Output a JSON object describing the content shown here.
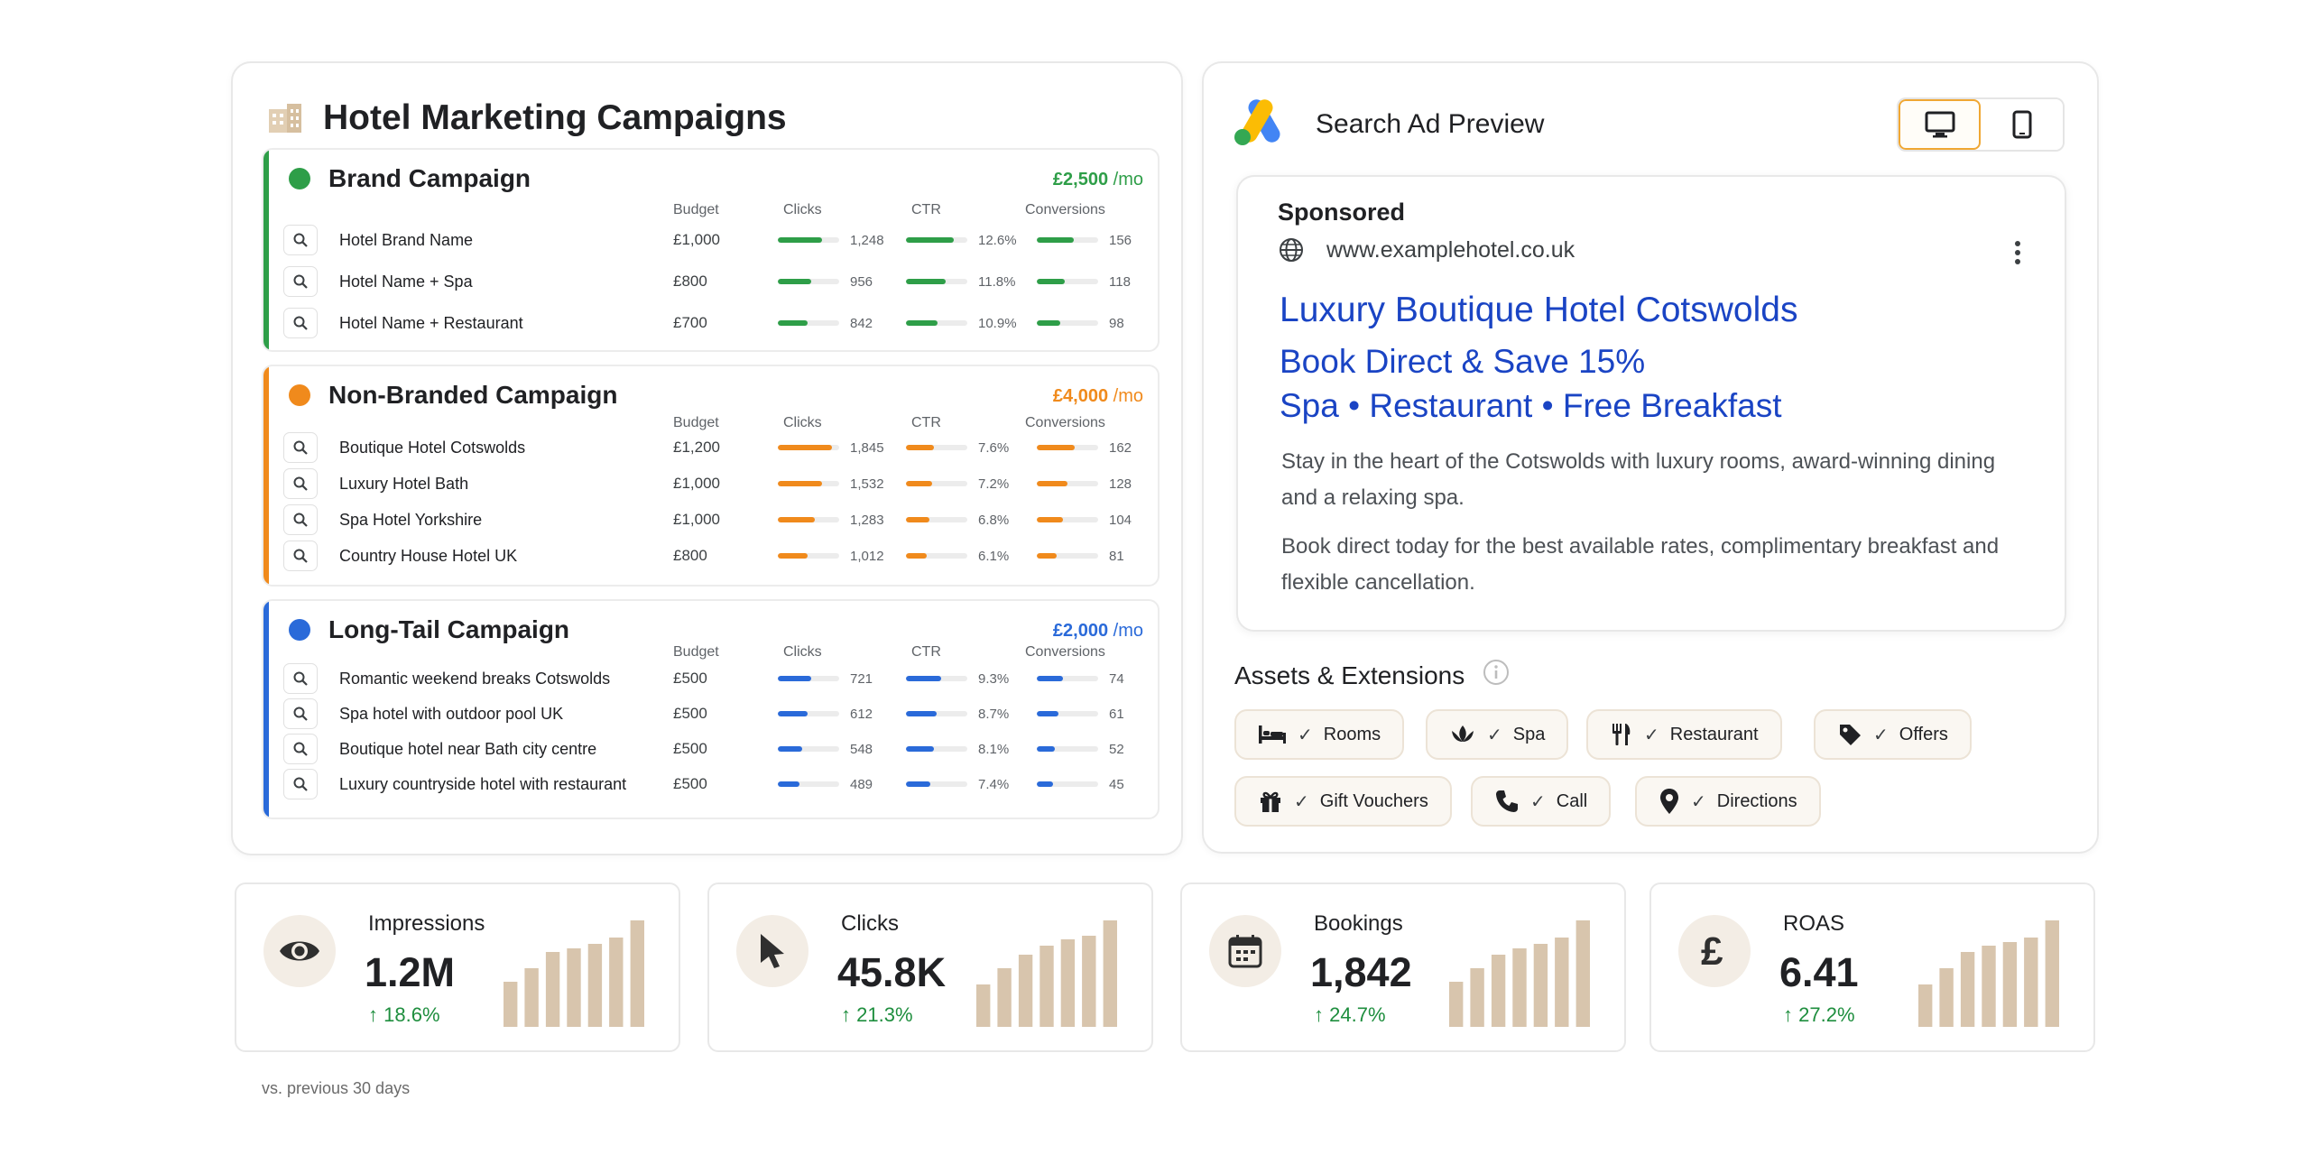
{
  "left": {
    "title": "Hotel Marketing Campaigns",
    "columns": {
      "budget": "Budget",
      "clicks": "Clicks",
      "ctr": "CTR",
      "conversions": "Conversions"
    },
    "campaigns": [
      {
        "name": "Brand Campaign",
        "budget": "£2,500",
        "budget_unit": "/mo",
        "color": "#2e9e48",
        "keywords": [
          {
            "text": "Hotel Brand Name",
            "budget": "£1,000",
            "clicks": "1,248",
            "ctr": "12.6%",
            "conversions": "156",
            "clicks_frac": 0.72,
            "ctr_frac": 0.78,
            "conv_frac": 0.6
          },
          {
            "text": "Hotel Name + Spa",
            "budget": "£800",
            "clicks": "956",
            "ctr": "11.8%",
            "conversions": "118",
            "clicks_frac": 0.55,
            "ctr_frac": 0.65,
            "conv_frac": 0.45
          },
          {
            "text": "Hotel Name + Restaurant",
            "budget": "£700",
            "clicks": "842",
            "ctr": "10.9%",
            "conversions": "98",
            "clicks_frac": 0.48,
            "ctr_frac": 0.52,
            "conv_frac": 0.38
          }
        ]
      },
      {
        "name": "Non-Branded Campaign",
        "budget": "£4,000",
        "budget_unit": "/mo",
        "color": "#f08a1c",
        "keywords": [
          {
            "text": "Boutique Hotel Cotswolds",
            "budget": "£1,200",
            "clicks": "1,845",
            "ctr": "7.6%",
            "conversions": "162",
            "clicks_frac": 0.88,
            "ctr_frac": 0.45,
            "conv_frac": 0.62
          },
          {
            "text": "Luxury Hotel Bath",
            "budget": "£1,000",
            "clicks": "1,532",
            "ctr": "7.2%",
            "conversions": "128",
            "clicks_frac": 0.72,
            "ctr_frac": 0.42,
            "conv_frac": 0.5
          },
          {
            "text": "Spa Hotel Yorkshire",
            "budget": "£1,000",
            "clicks": "1,283",
            "ctr": "6.8%",
            "conversions": "104",
            "clicks_frac": 0.6,
            "ctr_frac": 0.38,
            "conv_frac": 0.42
          },
          {
            "text": "Country House Hotel UK",
            "budget": "£800",
            "clicks": "1,012",
            "ctr": "6.1%",
            "conversions": "81",
            "clicks_frac": 0.48,
            "ctr_frac": 0.34,
            "conv_frac": 0.32
          }
        ]
      },
      {
        "name": "Long-Tail Campaign",
        "budget": "£2,000",
        "budget_unit": "/mo",
        "color": "#2a6ad9",
        "keywords": [
          {
            "text": "Romantic weekend breaks Cotswolds",
            "budget": "£500",
            "clicks": "721",
            "ctr": "9.3%",
            "conversions": "74",
            "clicks_frac": 0.55,
            "ctr_frac": 0.58,
            "conv_frac": 0.42
          },
          {
            "text": "Spa hotel with outdoor pool UK",
            "budget": "£500",
            "clicks": "612",
            "ctr": "8.7%",
            "conversions": "61",
            "clicks_frac": 0.48,
            "ctr_frac": 0.5,
            "conv_frac": 0.36
          },
          {
            "text": "Boutique hotel near Bath city centre",
            "budget": "£500",
            "clicks": "548",
            "ctr": "8.1%",
            "conversions": "52",
            "clicks_frac": 0.4,
            "ctr_frac": 0.45,
            "conv_frac": 0.3
          },
          {
            "text": "Luxury countryside hotel with restaurant",
            "budget": "£500",
            "clicks": "489",
            "ctr": "7.4%",
            "conversions": "45",
            "clicks_frac": 0.35,
            "ctr_frac": 0.4,
            "conv_frac": 0.26
          }
        ]
      }
    ]
  },
  "preview": {
    "title": "Search Ad Preview",
    "sponsored": "Sponsored",
    "url": "www.examplehotel.co.uk",
    "headline1": "Luxury Boutique Hotel Cotswolds",
    "headline2": "Book Direct & Save 15%",
    "headline3": "Spa • Restaurant • Free Breakfast",
    "desc1": "Stay in the heart of the Cotswolds with luxury rooms, award-winning dining and a relaxing spa.",
    "desc2": "Book direct today for the best available rates, complimentary breakfast and flexible cancellation.",
    "headline_color": "#1a44c4"
  },
  "assets": {
    "title": "Assets & Extensions",
    "chips": [
      {
        "label": "Rooms",
        "icon": "bed-icon"
      },
      {
        "label": "Spa",
        "icon": "lotus-icon"
      },
      {
        "label": "Restaurant",
        "icon": "cutlery-icon"
      },
      {
        "label": "Offers",
        "icon": "tag-icon"
      },
      {
        "label": "Gift Vouchers",
        "icon": "gift-icon"
      },
      {
        "label": "Call",
        "icon": "phone-icon"
      },
      {
        "label": "Directions",
        "icon": "location-pin-icon"
      }
    ]
  },
  "kpis": [
    {
      "label": "Impressions",
      "value": "1.2M",
      "change": "18.6%",
      "icon": "eye-icon",
      "bars": [
        0.42,
        0.55,
        0.7,
        0.74,
        0.78,
        0.84,
        1.0
      ]
    },
    {
      "label": "Clicks",
      "value": "45.8K",
      "change": "21.3%",
      "icon": "cursor-icon",
      "bars": [
        0.4,
        0.55,
        0.68,
        0.76,
        0.82,
        0.86,
        1.0
      ]
    },
    {
      "label": "Bookings",
      "value": "1,842",
      "change": "24.7%",
      "icon": "calendar-icon",
      "bars": [
        0.42,
        0.55,
        0.68,
        0.74,
        0.78,
        0.84,
        1.0
      ]
    },
    {
      "label": "ROAS",
      "value": "6.41",
      "change": "27.2%",
      "icon": "pound-icon",
      "bars": [
        0.4,
        0.55,
        0.7,
        0.76,
        0.8,
        0.84,
        1.0
      ]
    }
  ],
  "footnote": "vs. previous 30 days",
  "colors": {
    "bar_accent": "#d8c5ad",
    "positive": "#1e8e3e",
    "toggle_active": "#f0a732"
  }
}
